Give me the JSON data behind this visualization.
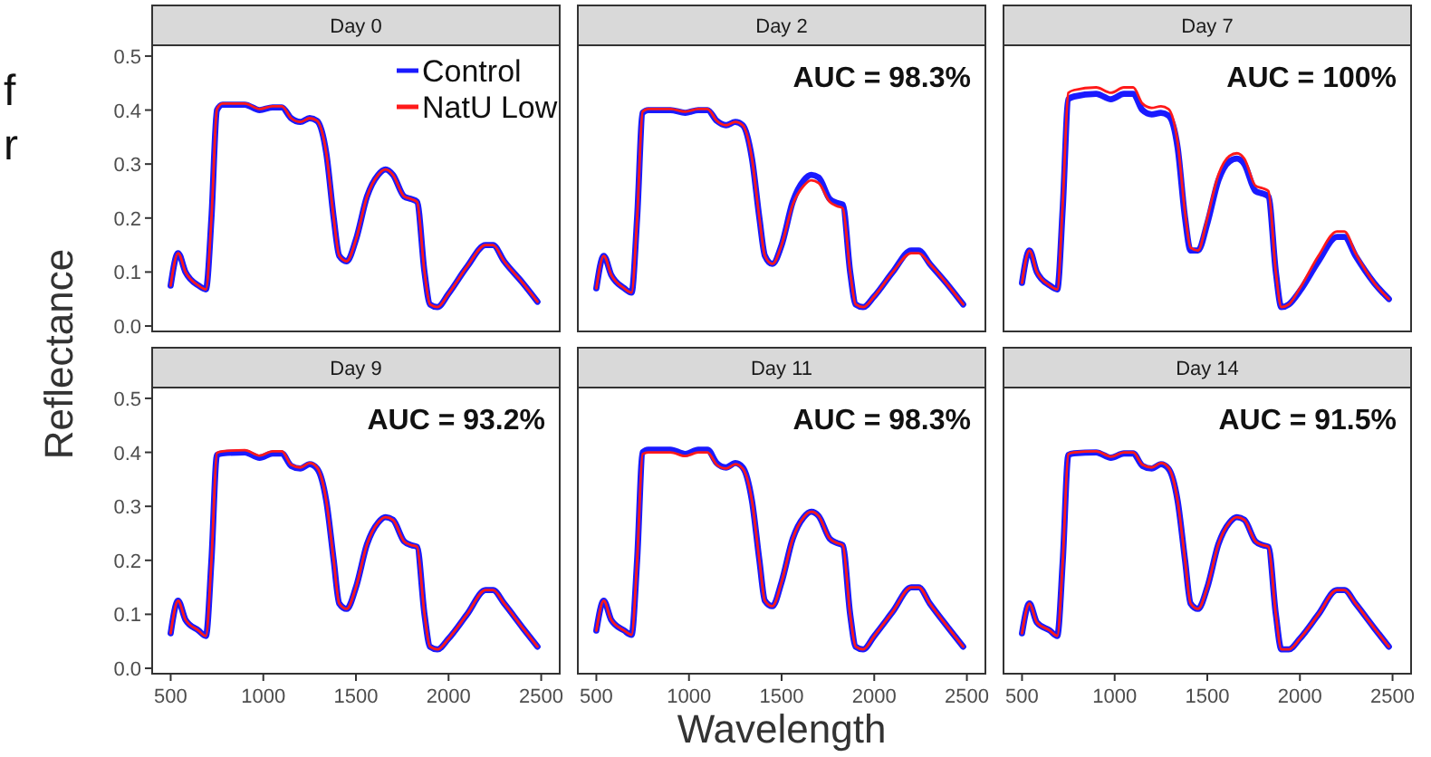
{
  "chart_data": [
    {
      "type": "line",
      "title": "Day 0",
      "ylabel": "Reflectance",
      "legend": "top right",
      "tick_labels": "y",
      "annotations": [
        "f",
        "r"
      ],
      "xlim": [
        400,
        2600
      ],
      "ylim": [
        -0.01,
        0.52
      ],
      "yticks": [
        {
          "value": 0,
          "label": "0.0"
        },
        {
          "value": 0.1,
          "label": "0.1"
        },
        {
          "value": 0.2,
          "label": "0.2"
        },
        {
          "value": 0.3,
          "label": "0.3"
        },
        {
          "value": 0.4,
          "label": "0.4"
        },
        {
          "value": 0.5,
          "label": "0.5"
        }
      ],
      "x": [
        500,
        540,
        580,
        650,
        690,
        720,
        750,
        780,
        900,
        980,
        1050,
        1100,
        1150,
        1200,
        1250,
        1290,
        1340,
        1380,
        1410,
        1450,
        1500,
        1560,
        1620,
        1660,
        1700,
        1760,
        1800,
        1830,
        1870,
        1900,
        1940,
        2000,
        2100,
        2200,
        2240,
        2300,
        2400,
        2480
      ],
      "series": [
        {
          "name": "Control",
          "color": "#1a1aff",
          "values": [
            0.075,
            0.135,
            0.1,
            0.075,
            0.068,
            0.2,
            0.4,
            0.41,
            0.41,
            0.4,
            0.405,
            0.405,
            0.385,
            0.378,
            0.385,
            0.38,
            0.32,
            0.2,
            0.13,
            0.12,
            0.16,
            0.24,
            0.28,
            0.29,
            0.28,
            0.24,
            0.235,
            0.23,
            0.1,
            0.04,
            0.035,
            0.06,
            0.11,
            0.15,
            0.15,
            0.12,
            0.08,
            0.045
          ]
        },
        {
          "name": "NatU Low",
          "color": "#ff1a1a",
          "values": [
            0.075,
            0.135,
            0.1,
            0.075,
            0.068,
            0.2,
            0.402,
            0.412,
            0.412,
            0.402,
            0.407,
            0.407,
            0.385,
            0.378,
            0.385,
            0.38,
            0.32,
            0.2,
            0.13,
            0.12,
            0.16,
            0.24,
            0.28,
            0.29,
            0.28,
            0.24,
            0.235,
            0.23,
            0.1,
            0.04,
            0.035,
            0.06,
            0.11,
            0.15,
            0.15,
            0.12,
            0.08,
            0.045
          ]
        }
      ]
    },
    {
      "type": "line",
      "title": "Day 2",
      "legend": false,
      "tick_labels": false,
      "annotations": [
        "AUC = 98.3%"
      ],
      "xlim": [
        400,
        2600
      ],
      "ylim": [
        -0.01,
        0.52
      ],
      "x": [
        500,
        540,
        580,
        650,
        690,
        720,
        750,
        780,
        900,
        980,
        1050,
        1100,
        1150,
        1200,
        1250,
        1290,
        1340,
        1380,
        1410,
        1450,
        1500,
        1560,
        1620,
        1660,
        1700,
        1760,
        1800,
        1830,
        1870,
        1900,
        1940,
        2000,
        2100,
        2200,
        2240,
        2300,
        2400,
        2480
      ],
      "series": [
        {
          "color": "#1a1aff",
          "values": [
            0.07,
            0.13,
            0.095,
            0.07,
            0.062,
            0.2,
            0.395,
            0.4,
            0.4,
            0.395,
            0.4,
            0.4,
            0.38,
            0.372,
            0.378,
            0.372,
            0.31,
            0.2,
            0.13,
            0.115,
            0.15,
            0.23,
            0.27,
            0.28,
            0.275,
            0.235,
            0.228,
            0.225,
            0.1,
            0.04,
            0.035,
            0.055,
            0.1,
            0.14,
            0.14,
            0.115,
            0.075,
            0.04
          ]
        },
        {
          "color": "#ff1a1a",
          "values": [
            0.07,
            0.13,
            0.095,
            0.07,
            0.062,
            0.2,
            0.397,
            0.402,
            0.402,
            0.397,
            0.402,
            0.402,
            0.38,
            0.372,
            0.378,
            0.372,
            0.31,
            0.2,
            0.13,
            0.115,
            0.15,
            0.225,
            0.26,
            0.27,
            0.265,
            0.23,
            0.222,
            0.218,
            0.1,
            0.04,
            0.035,
            0.055,
            0.1,
            0.135,
            0.135,
            0.115,
            0.075,
            0.04
          ]
        }
      ]
    },
    {
      "type": "line",
      "title": "Day 7",
      "legend": false,
      "tick_labels": false,
      "annotations": [
        "AUC = 100%"
      ],
      "xlim": [
        400,
        2600
      ],
      "ylim": [
        -0.01,
        0.52
      ],
      "x": [
        500,
        540,
        580,
        650,
        690,
        720,
        750,
        780,
        900,
        980,
        1050,
        1100,
        1150,
        1200,
        1250,
        1290,
        1340,
        1380,
        1410,
        1450,
        1500,
        1560,
        1620,
        1660,
        1700,
        1760,
        1800,
        1830,
        1870,
        1900,
        1940,
        2000,
        2100,
        2200,
        2240,
        2300,
        2400,
        2480
      ],
      "series": [
        {
          "color": "#1a1aff",
          "values": [
            0.08,
            0.14,
            0.1,
            0.075,
            0.068,
            0.22,
            0.42,
            0.425,
            0.43,
            0.42,
            0.43,
            0.43,
            0.4,
            0.392,
            0.395,
            0.39,
            0.33,
            0.2,
            0.14,
            0.14,
            0.19,
            0.27,
            0.305,
            0.31,
            0.3,
            0.25,
            0.245,
            0.24,
            0.1,
            0.035,
            0.04,
            0.065,
            0.12,
            0.165,
            0.165,
            0.13,
            0.08,
            0.05
          ]
        },
        {
          "color": "#ff1a1a",
          "values": [
            0.08,
            0.14,
            0.1,
            0.075,
            0.068,
            0.23,
            0.432,
            0.437,
            0.442,
            0.432,
            0.442,
            0.442,
            0.412,
            0.404,
            0.407,
            0.402,
            0.34,
            0.21,
            0.145,
            0.14,
            0.2,
            0.28,
            0.315,
            0.32,
            0.31,
            0.26,
            0.255,
            0.25,
            0.1,
            0.035,
            0.04,
            0.07,
            0.13,
            0.175,
            0.175,
            0.135,
            0.08,
            0.05
          ]
        }
      ]
    },
    {
      "type": "line",
      "title": "Day 9",
      "legend": false,
      "annotations": [
        "AUC = 93.2%"
      ],
      "xlim": [
        400,
        2600
      ],
      "ylim": [
        -0.01,
        0.52
      ],
      "xticks": [
        500,
        1000,
        1500,
        2000,
        2500
      ],
      "yticks": [
        {
          "value": 0,
          "label": "0.0"
        },
        {
          "value": 0.1,
          "label": "0.1"
        },
        {
          "value": 0.2,
          "label": "0.2"
        },
        {
          "value": 0.3,
          "label": "0.3"
        },
        {
          "value": 0.4,
          "label": "0.4"
        },
        {
          "value": 0.5,
          "label": "0.5"
        }
      ],
      "x": [
        500,
        540,
        580,
        650,
        690,
        720,
        750,
        780,
        900,
        980,
        1050,
        1100,
        1150,
        1200,
        1250,
        1290,
        1340,
        1380,
        1410,
        1450,
        1500,
        1560,
        1620,
        1660,
        1700,
        1760,
        1800,
        1830,
        1870,
        1900,
        1940,
        2000,
        2100,
        2200,
        2240,
        2300,
        2400,
        2480
      ],
      "series": [
        {
          "color": "#1a1aff",
          "values": [
            0.065,
            0.125,
            0.09,
            0.07,
            0.06,
            0.2,
            0.395,
            0.398,
            0.4,
            0.39,
            0.398,
            0.398,
            0.375,
            0.37,
            0.378,
            0.37,
            0.31,
            0.2,
            0.12,
            0.11,
            0.15,
            0.23,
            0.27,
            0.28,
            0.275,
            0.235,
            0.228,
            0.225,
            0.1,
            0.04,
            0.035,
            0.055,
            0.1,
            0.145,
            0.145,
            0.12,
            0.075,
            0.04
          ]
        },
        {
          "color": "#ff1a1a",
          "values": [
            0.065,
            0.125,
            0.09,
            0.07,
            0.06,
            0.2,
            0.399,
            0.402,
            0.404,
            0.394,
            0.402,
            0.402,
            0.377,
            0.372,
            0.38,
            0.372,
            0.31,
            0.2,
            0.12,
            0.11,
            0.15,
            0.23,
            0.27,
            0.28,
            0.275,
            0.235,
            0.228,
            0.225,
            0.1,
            0.04,
            0.035,
            0.055,
            0.1,
            0.145,
            0.145,
            0.12,
            0.075,
            0.04
          ]
        }
      ]
    },
    {
      "type": "line",
      "title": "Day 11",
      "xlabel": "Wavelength",
      "legend": false,
      "tick_labels": "x",
      "annotations": [
        "AUC = 98.3%"
      ],
      "xlim": [
        400,
        2600
      ],
      "ylim": [
        -0.01,
        0.52
      ],
      "xticks": [
        500,
        1000,
        1500,
        2000,
        2500
      ],
      "x": [
        500,
        540,
        580,
        650,
        690,
        720,
        750,
        780,
        900,
        980,
        1050,
        1100,
        1150,
        1200,
        1250,
        1290,
        1340,
        1380,
        1410,
        1450,
        1500,
        1560,
        1620,
        1660,
        1700,
        1760,
        1800,
        1830,
        1870,
        1900,
        1940,
        2000,
        2100,
        2200,
        2240,
        2300,
        2400,
        2480
      ],
      "series": [
        {
          "color": "#1a1aff",
          "values": [
            0.07,
            0.125,
            0.09,
            0.07,
            0.062,
            0.2,
            0.4,
            0.405,
            0.405,
            0.397,
            0.405,
            0.405,
            0.38,
            0.372,
            0.38,
            0.372,
            0.31,
            0.2,
            0.125,
            0.115,
            0.16,
            0.24,
            0.28,
            0.29,
            0.282,
            0.24,
            0.232,
            0.228,
            0.1,
            0.04,
            0.035,
            0.06,
            0.105,
            0.15,
            0.15,
            0.12,
            0.075,
            0.04
          ]
        },
        {
          "color": "#ff1a1a",
          "values": [
            0.07,
            0.125,
            0.09,
            0.07,
            0.062,
            0.2,
            0.397,
            0.4,
            0.4,
            0.393,
            0.4,
            0.4,
            0.377,
            0.37,
            0.378,
            0.37,
            0.31,
            0.2,
            0.125,
            0.115,
            0.16,
            0.24,
            0.28,
            0.29,
            0.282,
            0.24,
            0.232,
            0.228,
            0.1,
            0.04,
            0.035,
            0.06,
            0.105,
            0.15,
            0.15,
            0.12,
            0.075,
            0.04
          ]
        }
      ]
    },
    {
      "type": "line",
      "title": "Day 14",
      "legend": false,
      "tick_labels": "x",
      "annotations": [
        "AUC = 91.5%"
      ],
      "xlim": [
        400,
        2600
      ],
      "ylim": [
        -0.01,
        0.52
      ],
      "xticks": [
        500,
        1000,
        1500,
        2000,
        2500
      ],
      "x": [
        500,
        540,
        580,
        650,
        690,
        720,
        750,
        780,
        900,
        980,
        1050,
        1100,
        1150,
        1200,
        1250,
        1290,
        1340,
        1380,
        1410,
        1450,
        1500,
        1560,
        1620,
        1660,
        1700,
        1760,
        1800,
        1830,
        1870,
        1900,
        1940,
        2000,
        2100,
        2200,
        2240,
        2300,
        2400,
        2480
      ],
      "series": [
        {
          "color": "#1a1aff",
          "values": [
            0.065,
            0.12,
            0.085,
            0.07,
            0.06,
            0.2,
            0.395,
            0.398,
            0.4,
            0.39,
            0.398,
            0.398,
            0.375,
            0.37,
            0.378,
            0.37,
            0.31,
            0.2,
            0.12,
            0.11,
            0.15,
            0.23,
            0.27,
            0.28,
            0.275,
            0.235,
            0.228,
            0.225,
            0.1,
            0.035,
            0.035,
            0.055,
            0.1,
            0.145,
            0.145,
            0.12,
            0.075,
            0.04
          ]
        },
        {
          "color": "#ff1a1a",
          "values": [
            0.065,
            0.12,
            0.085,
            0.07,
            0.06,
            0.2,
            0.397,
            0.4,
            0.402,
            0.392,
            0.4,
            0.4,
            0.377,
            0.372,
            0.38,
            0.372,
            0.31,
            0.2,
            0.12,
            0.11,
            0.15,
            0.23,
            0.27,
            0.28,
            0.275,
            0.235,
            0.228,
            0.225,
            0.1,
            0.035,
            0.035,
            0.055,
            0.1,
            0.145,
            0.145,
            0.12,
            0.075,
            0.04
          ]
        }
      ]
    }
  ]
}
